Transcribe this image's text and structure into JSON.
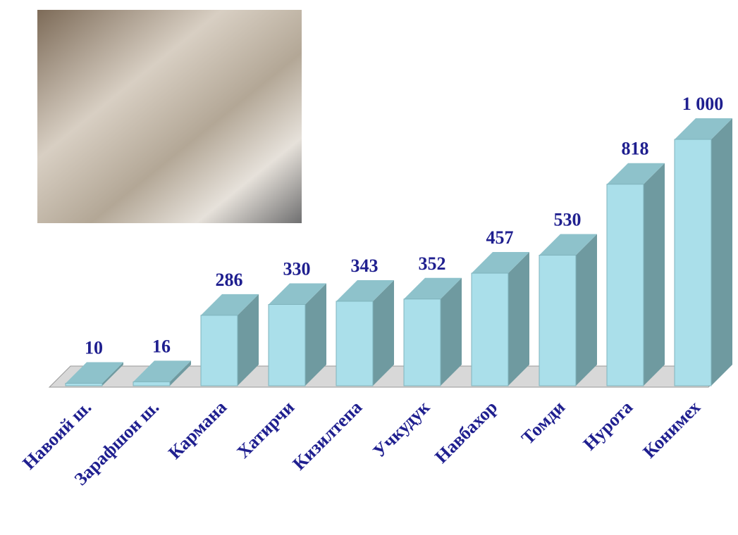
{
  "chart_data": {
    "type": "bar3d",
    "categories": [
      "Навоий ш.",
      "Зарафшон ш.",
      "Кармана",
      "Хатирчи",
      "Кизилтепа",
      "Учкудук",
      "Навбахор",
      "Томди",
      "Нурота",
      "Конимех"
    ],
    "values": [
      10,
      16,
      286,
      330,
      343,
      352,
      457,
      530,
      818,
      1000
    ],
    "value_labels": [
      "10",
      "16",
      "286",
      "330",
      "343",
      "352",
      "457",
      "530",
      "818",
      "1 000"
    ],
    "color": "#aadfea"
  }
}
